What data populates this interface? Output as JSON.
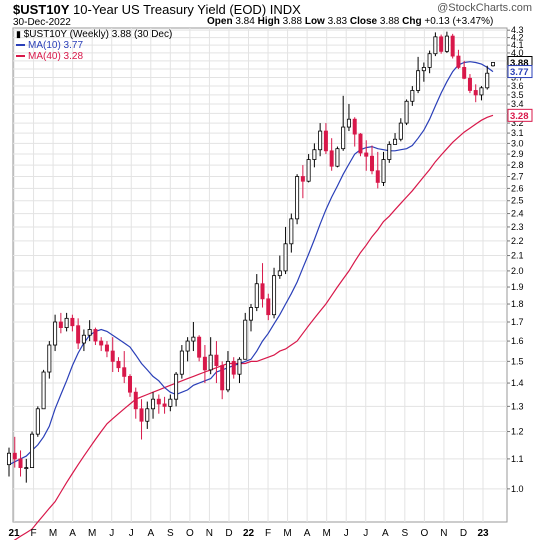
{
  "header": {
    "symbol": "$UST10Y",
    "description": "10-Year US Treasury Yield (EOD)",
    "exchange": "INDX",
    "date": "30-Dec-2022",
    "watermark": "@StockCharts.com",
    "open_label": "Open",
    "open": "3.84",
    "high_label": "High",
    "high": "3.88",
    "low_label": "Low",
    "low": "3.83",
    "close_label": "Close",
    "close": "3.88",
    "chg_label": "Chg",
    "chg": "+0.13 (+3.47%)"
  },
  "legend": {
    "main": "$UST10Y (Weekly) 3.88 (30 Dec)",
    "ma10": "MA(10) 3.77",
    "ma40": "MA(40) 3.28"
  },
  "colors": {
    "up": "#000000",
    "down": "#d8184a",
    "ma10": "#2a3fb8",
    "ma40": "#d8184a",
    "grid": "#e3e3e3"
  },
  "chart_data": {
    "type": "candlestick",
    "scale": "log",
    "grid": true,
    "ylim": [
      0.9,
      4.33
    ],
    "y_ticks": [
      "1.0",
      "1.1",
      "1.2",
      "1.3",
      "1.4",
      "1.5",
      "1.6",
      "1.7",
      "1.8",
      "1.9",
      "2.0",
      "2.1",
      "2.2",
      "2.3",
      "2.4",
      "2.5",
      "2.6",
      "2.7",
      "2.8",
      "2.9",
      "3.0",
      "3.1",
      "3.2",
      "3.3",
      "3.4",
      "3.5",
      "3.6",
      "3.7",
      "3.8",
      "3.9",
      "4.0",
      "4.1",
      "4.2",
      "4.3"
    ],
    "x_labels": [
      "21",
      "F",
      "M",
      "A",
      "M",
      "J",
      "J",
      "A",
      "S",
      "O",
      "N",
      "D",
      "22",
      "F",
      "M",
      "A",
      "M",
      "J",
      "J",
      "A",
      "S",
      "O",
      "N",
      "D",
      "23"
    ],
    "price_tags": {
      "close": "3.88",
      "ma10": "3.77",
      "ma40": "3.28"
    },
    "candles": [
      [
        1.08,
        1.14,
        1.04,
        1.12
      ],
      [
        1.12,
        1.18,
        1.07,
        1.1
      ],
      [
        1.1,
        1.13,
        1.04,
        1.07
      ],
      [
        1.07,
        1.1,
        1.02,
        1.07
      ],
      [
        1.07,
        1.2,
        1.07,
        1.19
      ],
      [
        1.19,
        1.3,
        1.18,
        1.29
      ],
      [
        1.29,
        1.46,
        1.29,
        1.45
      ],
      [
        1.45,
        1.6,
        1.42,
        1.58
      ],
      [
        1.58,
        1.74,
        1.55,
        1.7
      ],
      [
        1.7,
        1.75,
        1.64,
        1.67
      ],
      [
        1.67,
        1.75,
        1.65,
        1.72
      ],
      [
        1.72,
        1.74,
        1.65,
        1.68
      ],
      [
        1.68,
        1.72,
        1.56,
        1.59
      ],
      [
        1.59,
        1.66,
        1.55,
        1.63
      ],
      [
        1.63,
        1.71,
        1.6,
        1.66
      ],
      [
        1.66,
        1.67,
        1.58,
        1.6
      ],
      [
        1.6,
        1.62,
        1.55,
        1.58
      ],
      [
        1.58,
        1.6,
        1.52,
        1.55
      ],
      [
        1.55,
        1.62,
        1.45,
        1.5
      ],
      [
        1.5,
        1.52,
        1.45,
        1.47
      ],
      [
        1.47,
        1.55,
        1.4,
        1.43
      ],
      [
        1.43,
        1.44,
        1.34,
        1.36
      ],
      [
        1.36,
        1.38,
        1.25,
        1.29
      ],
      [
        1.29,
        1.33,
        1.17,
        1.24
      ],
      [
        1.24,
        1.32,
        1.21,
        1.29
      ],
      [
        1.29,
        1.36,
        1.25,
        1.33
      ],
      [
        1.33,
        1.35,
        1.27,
        1.31
      ],
      [
        1.31,
        1.34,
        1.27,
        1.3
      ],
      [
        1.3,
        1.35,
        1.28,
        1.33
      ],
      [
        1.33,
        1.45,
        1.3,
        1.44
      ],
      [
        1.44,
        1.58,
        1.42,
        1.55
      ],
      [
        1.55,
        1.62,
        1.5,
        1.6
      ],
      [
        1.6,
        1.7,
        1.55,
        1.62
      ],
      [
        1.62,
        1.63,
        1.5,
        1.52
      ],
      [
        1.52,
        1.58,
        1.4,
        1.46
      ],
      [
        1.46,
        1.62,
        1.44,
        1.53
      ],
      [
        1.53,
        1.6,
        1.4,
        1.48
      ],
      [
        1.48,
        1.5,
        1.33,
        1.37
      ],
      [
        1.37,
        1.55,
        1.36,
        1.5
      ],
      [
        1.5,
        1.52,
        1.42,
        1.44
      ],
      [
        1.44,
        1.52,
        1.4,
        1.51
      ],
      [
        1.51,
        1.75,
        1.51,
        1.71
      ],
      [
        1.71,
        1.8,
        1.65,
        1.78
      ],
      [
        1.78,
        1.98,
        1.76,
        1.92
      ],
      [
        1.92,
        2.05,
        1.78,
        1.83
      ],
      [
        1.83,
        1.86,
        1.71,
        1.74
      ],
      [
        1.74,
        2.02,
        1.72,
        1.97
      ],
      [
        1.97,
        2.1,
        1.95,
        2.0
      ],
      [
        2.0,
        2.3,
        1.98,
        2.18
      ],
      [
        2.18,
        2.4,
        2.12,
        2.36
      ],
      [
        2.36,
        2.72,
        2.32,
        2.7
      ],
      [
        2.7,
        2.8,
        2.52,
        2.66
      ],
      [
        2.66,
        2.9,
        2.65,
        2.85
      ],
      [
        2.85,
        3.0,
        2.78,
        2.94
      ],
      [
        2.94,
        3.2,
        2.88,
        3.12
      ],
      [
        3.12,
        3.2,
        2.9,
        2.93
      ],
      [
        2.93,
        3.05,
        2.75,
        2.79
      ],
      [
        2.79,
        2.97,
        2.78,
        2.95
      ],
      [
        2.95,
        3.49,
        2.93,
        3.16
      ],
      [
        3.16,
        3.4,
        3.12,
        3.24
      ],
      [
        3.24,
        3.26,
        2.97,
        3.09
      ],
      [
        3.09,
        3.1,
        2.88,
        2.91
      ],
      [
        2.91,
        3.03,
        2.75,
        2.88
      ],
      [
        2.88,
        2.98,
        2.72,
        2.75
      ],
      [
        2.75,
        2.92,
        2.6,
        2.65
      ],
      [
        2.65,
        2.92,
        2.62,
        2.85
      ],
      [
        2.85,
        3.02,
        2.82,
        2.99
      ],
      [
        2.99,
        3.1,
        3.0,
        3.04
      ],
      [
        3.04,
        3.25,
        3.02,
        3.2
      ],
      [
        3.2,
        3.45,
        3.18,
        3.43
      ],
      [
        3.43,
        3.6,
        3.38,
        3.55
      ],
      [
        3.55,
        3.95,
        3.52,
        3.78
      ],
      [
        3.78,
        3.88,
        3.65,
        3.82
      ],
      [
        3.82,
        4.03,
        3.75,
        3.99
      ],
      [
        3.99,
        4.27,
        3.96,
        4.21
      ],
      [
        4.21,
        4.24,
        3.99,
        4.02
      ],
      [
        4.02,
        4.28,
        4.0,
        4.22
      ],
      [
        4.22,
        4.25,
        3.93,
        3.96
      ],
      [
        3.96,
        4.04,
        3.8,
        3.82
      ],
      [
        3.82,
        3.9,
        3.68,
        3.69
      ],
      [
        3.69,
        3.74,
        3.52,
        3.55
      ],
      [
        3.55,
        3.62,
        3.42,
        3.5
      ],
      [
        3.5,
        3.6,
        3.44,
        3.58
      ],
      [
        3.58,
        3.84,
        3.56,
        3.75
      ],
      [
        3.84,
        3.88,
        3.83,
        3.88
      ]
    ],
    "ma10": [
      1.08,
      1.09,
      1.1,
      1.11,
      1.13,
      1.15,
      1.18,
      1.22,
      1.29,
      1.35,
      1.41,
      1.48,
      1.54,
      1.59,
      1.63,
      1.65,
      1.66,
      1.65,
      1.63,
      1.61,
      1.59,
      1.57,
      1.53,
      1.49,
      1.46,
      1.43,
      1.41,
      1.38,
      1.36,
      1.35,
      1.36,
      1.37,
      1.39,
      1.4,
      1.41,
      1.42,
      1.45,
      1.46,
      1.47,
      1.48,
      1.49,
      1.5,
      1.51,
      1.55,
      1.6,
      1.64,
      1.69,
      1.74,
      1.8,
      1.86,
      1.93,
      2.02,
      2.11,
      2.21,
      2.32,
      2.43,
      2.53,
      2.62,
      2.72,
      2.81,
      2.9,
      2.94,
      2.96,
      2.97,
      2.95,
      2.94,
      2.93,
      2.93,
      2.94,
      2.95,
      2.98,
      3.05,
      3.13,
      3.24,
      3.38,
      3.52,
      3.65,
      3.77,
      3.85,
      3.88,
      3.89,
      3.88,
      3.86,
      3.82,
      3.77
    ],
    "ma40": [
      0.84,
      0.85,
      0.86,
      0.87,
      0.88,
      0.9,
      0.92,
      0.94,
      0.96,
      0.99,
      1.02,
      1.05,
      1.08,
      1.11,
      1.14,
      1.17,
      1.2,
      1.23,
      1.25,
      1.27,
      1.29,
      1.31,
      1.33,
      1.34,
      1.35,
      1.36,
      1.37,
      1.38,
      1.39,
      1.4,
      1.41,
      1.42,
      1.43,
      1.44,
      1.45,
      1.46,
      1.47,
      1.48,
      1.49,
      1.49,
      1.49,
      1.49,
      1.5,
      1.5,
      1.51,
      1.52,
      1.53,
      1.55,
      1.56,
      1.58,
      1.6,
      1.64,
      1.68,
      1.72,
      1.76,
      1.8,
      1.85,
      1.9,
      1.95,
      2.0,
      2.06,
      2.12,
      2.17,
      2.23,
      2.28,
      2.34,
      2.38,
      2.43,
      2.48,
      2.53,
      2.58,
      2.64,
      2.7,
      2.76,
      2.83,
      2.89,
      2.95,
      3.01,
      3.06,
      3.11,
      3.15,
      3.19,
      3.23,
      3.26,
      3.28
    ]
  }
}
